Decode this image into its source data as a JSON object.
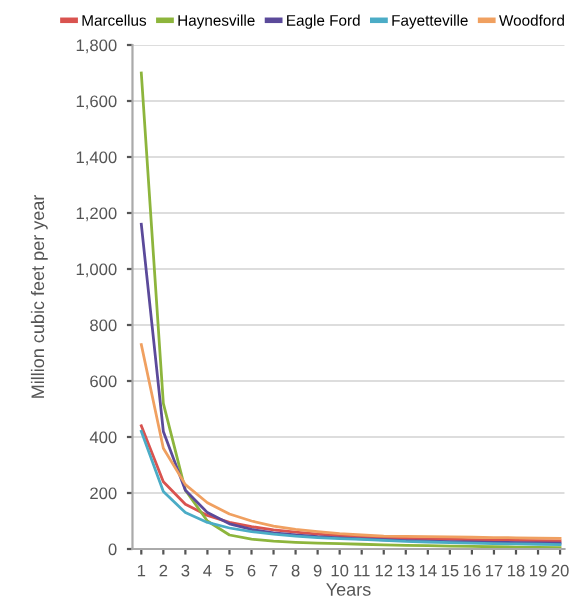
{
  "chart_data": {
    "type": "line",
    "xlabel": "Years",
    "ylabel": "Million cubic feet per year",
    "categories": [
      "1",
      "2",
      "3",
      "4",
      "5",
      "6",
      "7",
      "8",
      "9",
      "10",
      "11",
      "12",
      "13",
      "14",
      "15",
      "16",
      "17",
      "18",
      "19",
      "20"
    ],
    "series": [
      {
        "name": "Marcellus",
        "color": "#d9534f",
        "values": [
          440,
          240,
          160,
          120,
          95,
          80,
          68,
          60,
          53,
          48,
          44,
          40,
          38,
          36,
          35,
          33,
          32,
          31,
          30,
          29
        ]
      },
      {
        "name": "Haynesville",
        "color": "#8db53c",
        "values": [
          1700,
          520,
          210,
          100,
          50,
          35,
          28,
          24,
          21,
          19,
          17,
          15,
          13,
          12,
          10,
          9,
          8,
          7,
          6,
          5
        ]
      },
      {
        "name": "Eagle Ford",
        "color": "#5b4a9a",
        "values": [
          1160,
          420,
          210,
          130,
          90,
          70,
          58,
          50,
          44,
          40,
          36,
          33,
          30,
          28,
          26,
          25,
          24,
          23,
          22,
          21
        ]
      },
      {
        "name": "Fayetteville",
        "color": "#4bacc6",
        "values": [
          420,
          205,
          130,
          95,
          75,
          62,
          53,
          46,
          41,
          37,
          34,
          31,
          27,
          25,
          23,
          21,
          19,
          18,
          17,
          16
        ]
      },
      {
        "name": "Woodford",
        "color": "#f0a060",
        "values": [
          730,
          360,
          230,
          165,
          125,
          100,
          82,
          70,
          62,
          55,
          50,
          46,
          45,
          44,
          43,
          42,
          41,
          40,
          39,
          38
        ]
      }
    ],
    "ylim": [
      0,
      1800
    ],
    "yticks": [
      {
        "value": 0,
        "label": "0"
      },
      {
        "value": 200,
        "label": "200"
      },
      {
        "value": 400,
        "label": "400"
      },
      {
        "value": 600,
        "label": "600"
      },
      {
        "value": 800,
        "label": "800"
      },
      {
        "value": 1000,
        "label": "1,000"
      },
      {
        "value": 1200,
        "label": "1,200"
      },
      {
        "value": 1400,
        "label": "1,400"
      },
      {
        "value": 1600,
        "label": "1,600"
      },
      {
        "value": 1800,
        "label": "1,800"
      }
    ],
    "grid": "y",
    "legend": "top",
    "marker": "none",
    "line_style": "solid"
  }
}
